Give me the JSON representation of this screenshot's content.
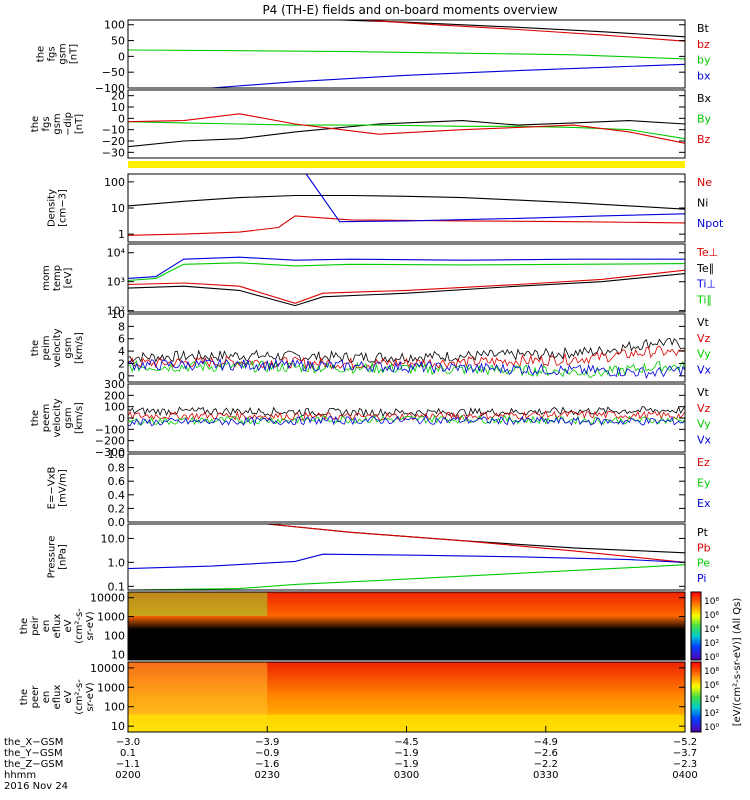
{
  "title": "P4 (TH-E) fields and on-board moments overview",
  "colors": {
    "black": "#000000",
    "red": "#dd0000",
    "green": "#00cc00",
    "blue": "#0000dd",
    "yellow": "#ffee00"
  },
  "chart_data": [
    {
      "type": "line",
      "ylabel": [
        "the",
        "fgs",
        "gsm",
        "[nT]"
      ],
      "yticks": [
        {
          "v": -100,
          "label": "−100"
        },
        {
          "v": -50,
          "label": "−50"
        },
        {
          "v": 0,
          "label": "0"
        },
        {
          "v": 50,
          "label": "50"
        },
        {
          "v": 100,
          "label": "100"
        }
      ],
      "ylim": [
        -100,
        115
      ],
      "legend": [
        {
          "name": "Bt",
          "color": "black"
        },
        {
          "name": "bz",
          "color": "red"
        },
        {
          "name": "by",
          "color": "green"
        },
        {
          "name": "bx",
          "color": "blue"
        }
      ],
      "series": [
        {
          "name": "Bt",
          "color": "black",
          "x": [
            0.38,
            0.5,
            0.7,
            0.85,
            1.0
          ],
          "y": [
            115,
            108,
            92,
            78,
            62
          ]
        },
        {
          "name": "bz",
          "color": "red",
          "x": [
            0.42,
            0.55,
            0.7,
            0.85,
            1.0
          ],
          "y": [
            115,
            100,
            85,
            68,
            48
          ]
        },
        {
          "name": "by",
          "color": "green",
          "x": [
            0,
            0.2,
            0.4,
            0.6,
            0.8,
            1.0
          ],
          "y": [
            20,
            18,
            15,
            10,
            5,
            -8
          ]
        },
        {
          "name": "bx",
          "color": "blue",
          "x": [
            0.15,
            0.3,
            0.5,
            0.7,
            0.85,
            1.0
          ],
          "y": [
            -100,
            -80,
            -60,
            -45,
            -35,
            -25
          ]
        }
      ]
    },
    {
      "type": "line",
      "ylabel": [
        "the",
        "fgs",
        "gsm",
        "−dip",
        "[nT]"
      ],
      "yticks": [
        {
          "v": -30,
          "label": "−30"
        },
        {
          "v": -20,
          "label": "−20"
        },
        {
          "v": -10,
          "label": "−10"
        },
        {
          "v": 0,
          "label": "0"
        },
        {
          "v": 10,
          "label": "10"
        },
        {
          "v": 20,
          "label": "20"
        }
      ],
      "ylim": [
        -35,
        25
      ],
      "legend": [
        {
          "name": "Bx",
          "color": "black"
        },
        {
          "name": "By",
          "color": "green"
        },
        {
          "name": "Bz",
          "color": "red"
        }
      ],
      "series": [
        {
          "name": "Bx",
          "color": "black",
          "x": [
            0,
            0.1,
            0.2,
            0.3,
            0.45,
            0.6,
            0.7,
            0.8,
            0.9,
            1.0
          ],
          "y": [
            -25,
            -20,
            -18,
            -12,
            -5,
            -2,
            -6,
            -4,
            -2,
            -5
          ]
        },
        {
          "name": "By",
          "color": "green",
          "x": [
            0,
            0.1,
            0.2,
            0.3,
            0.45,
            0.6,
            0.7,
            0.8,
            0.9,
            1.0
          ],
          "y": [
            -3,
            -4,
            -5,
            -6,
            -6,
            -7,
            -7,
            -8,
            -10,
            -18
          ]
        },
        {
          "name": "Bz",
          "color": "red",
          "x": [
            0,
            0.1,
            0.2,
            0.3,
            0.45,
            0.6,
            0.7,
            0.8,
            0.9,
            1.0
          ],
          "y": [
            -3,
            -2,
            4,
            -5,
            -14,
            -10,
            -8,
            -6,
            -12,
            -22
          ]
        }
      ]
    },
    {
      "type": "line",
      "ylog": true,
      "ylabel": [
        "Density",
        "[cm−3]"
      ],
      "yticks": [
        {
          "v": 1,
          "label": "1"
        },
        {
          "v": 10,
          "label": "10"
        },
        {
          "v": 100,
          "label": "100"
        }
      ],
      "ylim": [
        0.5,
        200
      ],
      "legend": [
        {
          "name": "Ne",
          "color": "red"
        },
        {
          "name": "Ni",
          "color": "black"
        },
        {
          "name": "Npot",
          "color": "blue"
        }
      ],
      "series": [
        {
          "name": "Ni",
          "color": "black",
          "x": [
            0,
            0.1,
            0.2,
            0.3,
            0.4,
            0.5,
            0.6,
            0.7,
            0.8,
            0.9,
            1.0
          ],
          "y": [
            12,
            18,
            25,
            30,
            30,
            28,
            25,
            20,
            16,
            12,
            9
          ]
        },
        {
          "name": "Ne",
          "color": "red",
          "x": [
            0,
            0.1,
            0.2,
            0.27,
            0.3,
            0.4,
            0.6,
            0.8,
            1.0
          ],
          "y": [
            0.9,
            1.0,
            1.2,
            1.8,
            5,
            3.5,
            3.2,
            3.0,
            2.7
          ]
        },
        {
          "name": "Npot",
          "color": "blue",
          "x": [
            0.32,
            0.38,
            0.5,
            0.7,
            0.85,
            1.0
          ],
          "y": [
            200,
            3,
            3.2,
            4,
            5,
            6
          ]
        }
      ]
    },
    {
      "type": "line",
      "ylog": true,
      "ylabel": [
        "mom",
        "temp",
        "[eV]"
      ],
      "yticks": [
        {
          "v": 100,
          "label": "10²"
        },
        {
          "v": 1000,
          "label": "10³"
        },
        {
          "v": 10000,
          "label": "10⁴"
        }
      ],
      "ylim": [
        90,
        20000
      ],
      "legend": [
        {
          "name": "Te⊥",
          "color": "red"
        },
        {
          "name": "Te∥",
          "color": "black"
        },
        {
          "name": "Ti⊥",
          "color": "blue"
        },
        {
          "name": "Ti∥",
          "color": "green"
        }
      ],
      "series": [
        {
          "name": "Ti⊥",
          "color": "blue",
          "x": [
            0,
            0.05,
            0.1,
            0.2,
            0.3,
            0.4,
            0.6,
            0.8,
            1.0
          ],
          "y": [
            1300,
            1500,
            6000,
            7000,
            5500,
            6000,
            5500,
            6000,
            6000
          ]
        },
        {
          "name": "Ti∥",
          "color": "green",
          "x": [
            0,
            0.05,
            0.1,
            0.2,
            0.3,
            0.4,
            0.6,
            0.8,
            1.0
          ],
          "y": [
            1100,
            1300,
            4000,
            4500,
            3500,
            4000,
            3800,
            4000,
            4200
          ]
        },
        {
          "name": "Te⊥",
          "color": "red",
          "x": [
            0,
            0.1,
            0.2,
            0.3,
            0.35,
            0.5,
            0.7,
            0.85,
            1.0
          ],
          "y": [
            800,
            900,
            700,
            180,
            400,
            500,
            800,
            1200,
            2500
          ]
        },
        {
          "name": "Te∥",
          "color": "black",
          "x": [
            0,
            0.1,
            0.2,
            0.3,
            0.35,
            0.5,
            0.7,
            0.85,
            1.0
          ],
          "y": [
            600,
            700,
            500,
            150,
            300,
            400,
            700,
            1000,
            1900
          ]
        }
      ]
    },
    {
      "type": "line",
      "ylabel": [
        "the",
        "peim",
        "velocity",
        "gsm",
        "[km/s]"
      ],
      "yticks": [
        {
          "v": 0,
          "label": "0"
        },
        {
          "v": 2,
          "label": "2"
        },
        {
          "v": 4,
          "label": "4"
        },
        {
          "v": 6,
          "label": "6"
        },
        {
          "v": 8,
          "label": "8"
        },
        {
          "v": 10,
          "label": "10"
        }
      ],
      "ylim": [
        -1,
        10
      ],
      "legend": [
        {
          "name": "Vt",
          "color": "black"
        },
        {
          "name": "Vz",
          "color": "red"
        },
        {
          "name": "Vy",
          "color": "green"
        },
        {
          "name": "Vx",
          "color": "blue"
        }
      ],
      "series": [
        {
          "name": "Vt",
          "color": "black",
          "x": [
            0,
            0.2,
            0.4,
            0.6,
            0.75,
            0.85,
            0.95,
            1.0
          ],
          "y": [
            3,
            3.3,
            3,
            3.2,
            3.5,
            4,
            5.5,
            5
          ]
        },
        {
          "name": "Vz",
          "color": "red",
          "x": [
            0,
            0.2,
            0.4,
            0.6,
            0.75,
            0.85,
            0.95,
            1.0
          ],
          "y": [
            2,
            2.3,
            2,
            2.2,
            2.5,
            3,
            4,
            3.5
          ]
        },
        {
          "name": "Vy",
          "color": "green",
          "x": [
            0,
            0.2,
            0.4,
            0.6,
            0.75,
            0.85,
            0.95,
            1.0
          ],
          "y": [
            1.5,
            1.5,
            1.3,
            1,
            0.8,
            0.5,
            1.5,
            1.5
          ]
        },
        {
          "name": "Vx",
          "color": "blue",
          "x": [
            0,
            0.2,
            0.4,
            0.6,
            0.75,
            0.85,
            0.95,
            1.0
          ],
          "y": [
            1.8,
            1.8,
            1.6,
            1.3,
            1,
            0.8,
            0.5,
            1.0
          ]
        }
      ]
    },
    {
      "type": "line",
      "ylabel": [
        "the",
        "peem",
        "velocity",
        "gsm",
        "[km/s]"
      ],
      "yticks": [
        {
          "v": -300,
          "label": "−300"
        },
        {
          "v": -200,
          "label": "−200"
        },
        {
          "v": -100,
          "label": "−100"
        },
        {
          "v": 0,
          "label": "0"
        },
        {
          "v": 100,
          "label": "100"
        },
        {
          "v": 200,
          "label": "200"
        },
        {
          "v": 300,
          "label": "300"
        }
      ],
      "ylim": [
        -300,
        300
      ],
      "legend": [
        {
          "name": "Vt",
          "color": "black"
        },
        {
          "name": "Vz",
          "color": "red"
        },
        {
          "name": "Vy",
          "color": "green"
        },
        {
          "name": "Vx",
          "color": "blue"
        }
      ],
      "series": [
        {
          "name": "Vt",
          "color": "black",
          "x": [
            0,
            0.2,
            0.4,
            0.6,
            0.8,
            1.0
          ],
          "y": [
            60,
            60,
            50,
            50,
            60,
            70
          ]
        },
        {
          "name": "Vz",
          "color": "red",
          "x": [
            0,
            0.2,
            0.4,
            0.6,
            0.8,
            1.0
          ],
          "y": [
            20,
            20,
            10,
            20,
            30,
            20
          ]
        },
        {
          "name": "Vy",
          "color": "green",
          "x": [
            0,
            0.2,
            0.4,
            0.6,
            0.8,
            1.0
          ],
          "y": [
            -30,
            -20,
            -10,
            -10,
            -20,
            -20
          ]
        },
        {
          "name": "Vx",
          "color": "blue",
          "x": [
            0,
            0.2,
            0.4,
            0.6,
            0.8,
            1.0
          ],
          "y": [
            -40,
            -30,
            -20,
            -20,
            -30,
            -30
          ]
        }
      ]
    },
    {
      "type": "line",
      "ylabel": [
        "E=−VxB",
        "[mV/m]"
      ],
      "yticks": [
        {
          "v": 0,
          "label": "0.0"
        },
        {
          "v": 0.2,
          "label": "0.2"
        },
        {
          "v": 0.4,
          "label": "0.4"
        },
        {
          "v": 0.6,
          "label": "0.6"
        },
        {
          "v": 0.8,
          "label": "0.8"
        },
        {
          "v": 1.0,
          "label": "1.0"
        }
      ],
      "ylim": [
        0,
        1.0
      ],
      "legend": [
        {
          "name": "Ez",
          "color": "red"
        },
        {
          "name": "Ey",
          "color": "green"
        },
        {
          "name": "Ex",
          "color": "blue"
        }
      ],
      "series": []
    },
    {
      "type": "line",
      "ylog": true,
      "ylabel": [
        "Pressure",
        "[nPa]"
      ],
      "yticks": [
        {
          "v": 0.1,
          "label": "0.1"
        },
        {
          "v": 1,
          "label": "1.0"
        },
        {
          "v": 10,
          "label": "10.0"
        }
      ],
      "ylim": [
        0.07,
        40
      ],
      "legend": [
        {
          "name": "Pt",
          "color": "black"
        },
        {
          "name": "Pb",
          "color": "red"
        },
        {
          "name": "Pe",
          "color": "green"
        },
        {
          "name": "Pi",
          "color": "blue"
        }
      ],
      "series": [
        {
          "name": "Pt",
          "color": "black",
          "x": [
            0.25,
            0.4,
            0.6,
            0.8,
            1.0
          ],
          "y": [
            40,
            18,
            8,
            4,
            2.5
          ]
        },
        {
          "name": "Pb",
          "color": "red",
          "x": [
            0.25,
            0.4,
            0.6,
            0.8,
            1.0
          ],
          "y": [
            40,
            18,
            8,
            3,
            1.0
          ]
        },
        {
          "name": "Pe",
          "color": "green",
          "x": [
            0,
            0.2,
            0.3,
            0.5,
            0.7,
            0.9,
            1.0
          ],
          "y": [
            0.07,
            0.08,
            0.12,
            0.2,
            0.35,
            0.6,
            0.8
          ]
        },
        {
          "name": "Pi",
          "color": "blue",
          "x": [
            0,
            0.15,
            0.3,
            0.35,
            0.5,
            0.7,
            0.9,
            1.0
          ],
          "y": [
            0.55,
            0.7,
            1.1,
            2.2,
            2.0,
            1.7,
            1.3,
            1.0
          ]
        }
      ]
    },
    {
      "type": "heatmap",
      "ylog": true,
      "ylabel": [
        "the",
        "peir",
        "en",
        "eflux",
        "eV",
        "(cm²-s-",
        "sr-eV)"
      ],
      "yticks": [
        {
          "v": 10,
          "label": "10"
        },
        {
          "v": 100,
          "label": "100"
        },
        {
          "v": 1000,
          "label": "1000"
        },
        {
          "v": 10000,
          "label": "10000"
        }
      ]
    },
    {
      "type": "heatmap",
      "ylog": true,
      "ylabel": [
        "the",
        "peer",
        "en",
        "eflux",
        "eV",
        "(cm²-s-",
        "sr-eV)"
      ],
      "yticks": [
        {
          "v": 10,
          "label": "10"
        },
        {
          "v": 100,
          "label": "100"
        },
        {
          "v": 1000,
          "label": "1000"
        },
        {
          "v": 10000,
          "label": "10000"
        }
      ]
    }
  ],
  "colorbar": {
    "label": "[eV/(cm²-s-sr-eV)] (All Qs)",
    "ticks": [
      "10⁸",
      "10⁶",
      "10⁴",
      "10²",
      "10⁰",
      "10⁸",
      "10⁶",
      "10⁴",
      "10²",
      "10⁰"
    ]
  },
  "time_axis": {
    "positions": [
      {
        "t": 0,
        "xcsm": "−3.0",
        "ycsm": "0.1",
        "zcsm": "−1.1",
        "hhmm": "0200"
      },
      {
        "t": 0.25,
        "xcsm": "−3.9",
        "ycsm": "−0.9",
        "zcsm": "−1.6",
        "hhmm": "0230"
      },
      {
        "t": 0.5,
        "xcsm": "−4.5",
        "ycsm": "−1.9",
        "zcsm": "−1.9",
        "hhmm": "0300"
      },
      {
        "t": 0.75,
        "xcsm": "−4.9",
        "ycsm": "−2.6",
        "zcsm": "−2.2",
        "hhmm": "0330"
      },
      {
        "t": 1.0,
        "xcsm": "−5.2",
        "ycsm": "−3.7",
        "zcsm": "−2.3",
        "hhmm": "0400"
      }
    ],
    "row_labels": [
      "the_X−GSM",
      "the_Y−GSM",
      "the_Z−GSM",
      "hhmm"
    ],
    "date": "2016 Nov 24"
  }
}
